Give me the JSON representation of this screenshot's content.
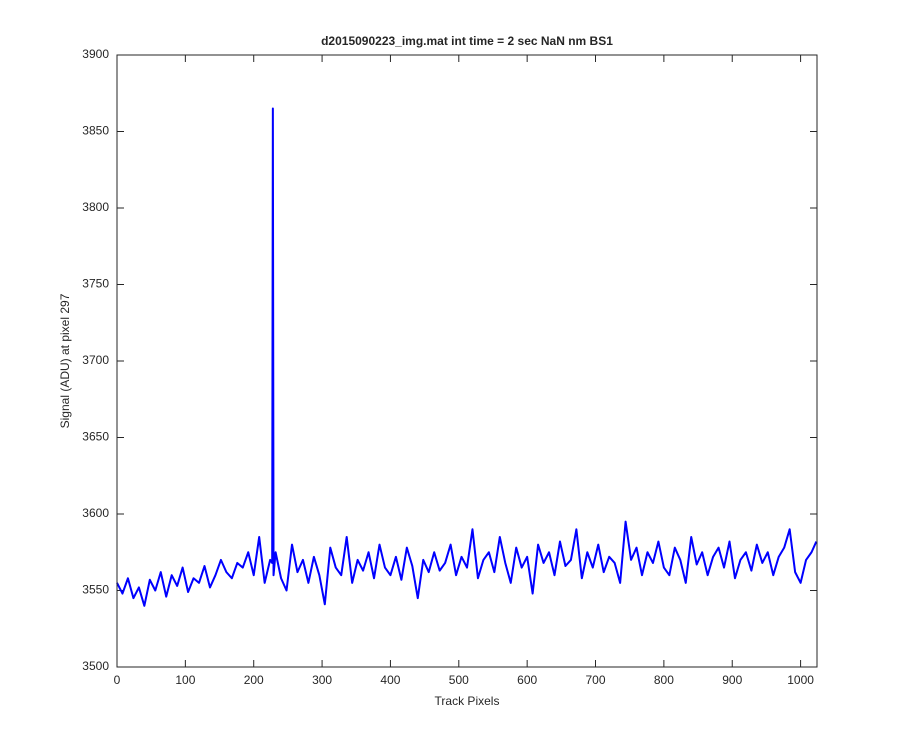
{
  "chart_data": {
    "type": "line",
    "title": "d2015090223_img.mat int time = 2 sec  NaN nm BS1",
    "x_label": "Track Pixels",
    "y_label": "Signal (ADU) at pixel 297",
    "xlim": [
      0,
      1024
    ],
    "ylim": [
      3500,
      3900
    ],
    "xticks": [
      0,
      100,
      200,
      300,
      400,
      500,
      600,
      700,
      800,
      900,
      1000
    ],
    "yticks": [
      3500,
      3550,
      3600,
      3650,
      3700,
      3750,
      3800,
      3850,
      3900
    ],
    "grid": false,
    "series": [
      {
        "color": "#0000ff",
        "x": [
          0,
          8,
          16,
          24,
          32,
          40,
          48,
          56,
          64,
          72,
          80,
          88,
          96,
          104,
          112,
          120,
          128,
          136,
          144,
          152,
          160,
          168,
          176,
          184,
          192,
          200,
          208,
          216,
          224,
          227,
          228,
          229,
          232,
          240,
          248,
          256,
          264,
          272,
          280,
          288,
          296,
          304,
          312,
          320,
          328,
          336,
          344,
          352,
          360,
          368,
          376,
          384,
          392,
          400,
          408,
          416,
          424,
          432,
          440,
          448,
          456,
          464,
          472,
          480,
          488,
          496,
          504,
          512,
          520,
          528,
          536,
          544,
          552,
          560,
          568,
          576,
          584,
          592,
          600,
          608,
          616,
          624,
          632,
          640,
          648,
          656,
          664,
          672,
          680,
          688,
          696,
          704,
          712,
          720,
          728,
          736,
          744,
          752,
          760,
          768,
          776,
          784,
          792,
          800,
          808,
          816,
          824,
          832,
          840,
          848,
          856,
          864,
          872,
          880,
          888,
          896,
          904,
          912,
          920,
          928,
          936,
          944,
          952,
          960,
          968,
          976,
          984,
          992,
          1000,
          1008,
          1016,
          1023
        ],
        "values": [
          3555,
          3548,
          3558,
          3545,
          3552,
          3540,
          3557,
          3550,
          3562,
          3546,
          3560,
          3553,
          3565,
          3549,
          3558,
          3555,
          3566,
          3552,
          3560,
          3570,
          3562,
          3558,
          3568,
          3565,
          3575,
          3560,
          3585,
          3555,
          3570,
          3568,
          3865,
          3560,
          3575,
          3558,
          3550,
          3580,
          3562,
          3570,
          3555,
          3572,
          3560,
          3541,
          3578,
          3565,
          3560,
          3585,
          3555,
          3570,
          3563,
          3575,
          3558,
          3580,
          3565,
          3560,
          3572,
          3557,
          3578,
          3566,
          3545,
          3570,
          3562,
          3575,
          3563,
          3568,
          3580,
          3560,
          3572,
          3565,
          3590,
          3558,
          3570,
          3575,
          3562,
          3585,
          3568,
          3555,
          3578,
          3565,
          3572,
          3548,
          3580,
          3568,
          3575,
          3560,
          3582,
          3566,
          3570,
          3590,
          3558,
          3575,
          3565,
          3580,
          3562,
          3572,
          3568,
          3555,
          3595,
          3570,
          3578,
          3560,
          3575,
          3568,
          3582,
          3565,
          3560,
          3578,
          3570,
          3555,
          3585,
          3567,
          3575,
          3560,
          3572,
          3578,
          3565,
          3582,
          3558,
          3570,
          3575,
          3563,
          3580,
          3568,
          3575,
          3560,
          3572,
          3578,
          3590,
          3562,
          3555,
          3570,
          3575,
          3582
        ]
      }
    ]
  }
}
